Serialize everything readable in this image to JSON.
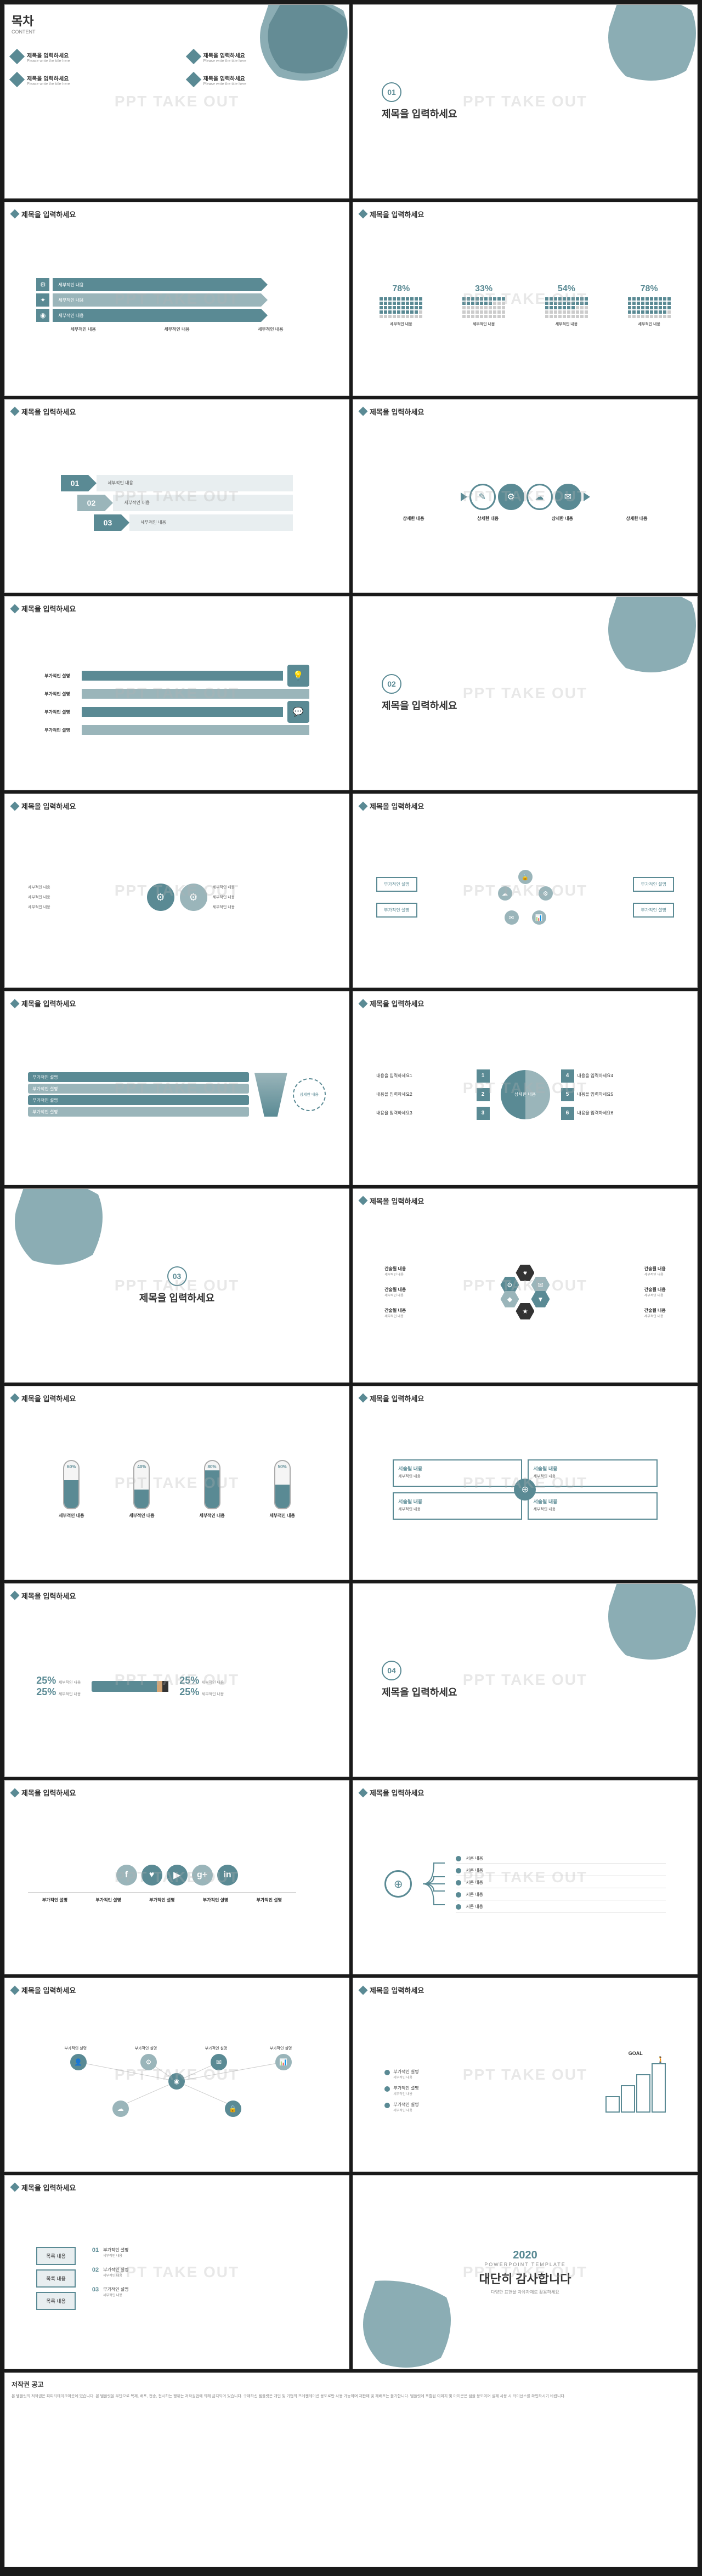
{
  "colors": {
    "primary": "#5a8a94",
    "light": "#9ab5ba",
    "bg": "#ffffff",
    "text": "#333333",
    "muted": "#888888"
  },
  "watermark": "PPT TAKE OUT",
  "common_title": "제목을 입력하세요",
  "sub_label": "세부적인 내용",
  "detail_label": "상세한 내용",
  "extra_label": "부가적인 설명",
  "desc_label": "서술될 내용",
  "toc": {
    "heading": "목차",
    "sub": "CONTENT",
    "items": [
      {
        "t": "제목을 입력하세요",
        "s": "Please write the title here"
      },
      {
        "t": "제목을 입력하세요",
        "s": "Please write the title here"
      },
      {
        "t": "제목을 입력하세요",
        "s": "Please write the title here"
      },
      {
        "t": "제목을 입력하세요",
        "s": "Please write the title here"
      }
    ]
  },
  "sections": [
    {
      "num": "01",
      "title": "제목을 입력하세요"
    },
    {
      "num": "02",
      "title": "제목을 입력하세요"
    },
    {
      "num": "03",
      "title": "제목을 입력하세요"
    },
    {
      "num": "04",
      "title": "제목을 입력하세요"
    }
  ],
  "percentages": {
    "cols": [
      {
        "v": "78%",
        "fill": 78,
        "lbl": "세부적인 내용"
      },
      {
        "v": "33%",
        "fill": 33,
        "lbl": "세부적인 내용"
      },
      {
        "v": "54%",
        "fill": 54,
        "lbl": "세부적인 내용"
      },
      {
        "v": "78%",
        "fill": 78,
        "lbl": "세부적인 내용"
      }
    ]
  },
  "steps": [
    {
      "n": "01",
      "t": "세부적인 내용"
    },
    {
      "n": "02",
      "t": "세부적인 내용"
    },
    {
      "n": "03",
      "t": "세부적인 내용"
    }
  ],
  "circles": [
    "✎",
    "⚙",
    "☁",
    "✉",
    "⬈"
  ],
  "tubes": [
    {
      "pct": 60,
      "lbl": "세부적인 내용"
    },
    {
      "pct": 40,
      "lbl": "세부적인 내용"
    },
    {
      "pct": 80,
      "lbl": "세부적인 내용"
    },
    {
      "pct": 50,
      "lbl": "세부적인 내용"
    }
  ],
  "pencil": {
    "left": [
      {
        "v": "25%",
        "s": "세부적인 내용"
      },
      {
        "v": "25%",
        "s": "세부적인 내용"
      }
    ],
    "right": [
      {
        "v": "25%",
        "s": "세부적인 내용"
      },
      {
        "v": "25%",
        "s": "세부적인 내용"
      }
    ]
  },
  "social": [
    "f",
    "♥",
    "▶",
    "g+",
    "in"
  ],
  "halves": {
    "left": [
      {
        "n": "1",
        "t": "내용을 입력하세요1"
      },
      {
        "n": "2",
        "t": "내용을 입력하세요2"
      },
      {
        "n": "3",
        "t": "내용을 입력하세요3"
      }
    ],
    "center": "상세한 내용",
    "right": [
      {
        "n": "4",
        "t": "내용을 입력하세요4"
      },
      {
        "n": "5",
        "t": "내용을 입력하세요5"
      },
      {
        "n": "6",
        "t": "내용을 입력하세요6"
      }
    ]
  },
  "hex_label": "간술될 내용",
  "quad_label": "서술될 내용",
  "tree_label": "서론 내용",
  "goal": {
    "flag": "GOAL",
    "heights": [
      30,
      50,
      70,
      90
    ]
  },
  "list": {
    "boxes": [
      "목록 내용",
      "목록 내용",
      "목록 내용"
    ],
    "items": [
      {
        "n": "01",
        "t": "부가적인 설명"
      },
      {
        "n": "02",
        "t": "부가적인 설명"
      },
      {
        "n": "03",
        "t": "부가적인 설명"
      }
    ]
  },
  "thanks": {
    "year": "2020",
    "sub": "POWERPOINT TEMPLATE",
    "heading": "대단히 감사합니다",
    "desc": "다양한 표현을 자유자재로 활용하세요"
  },
  "copyright": {
    "heading": "저작권 공고",
    "body": "본 템플릿의 저작권은 피피티테이크아웃에 있습니다. 본 템플릿을 무단으로 복제, 배포, 전송, 전시하는 행위는 저작권법에 의해 금지되어 있습니다. 구매하신 템플릿은 개인 및 기업의 프레젠테이션 용도로만 사용 가능하며 재판매 및 재배포는 불가합니다. 템플릿에 포함된 이미지 및 아이콘은 샘플 용도이며 실제 사용 시 라이선스를 확인하시기 바랍니다."
  }
}
